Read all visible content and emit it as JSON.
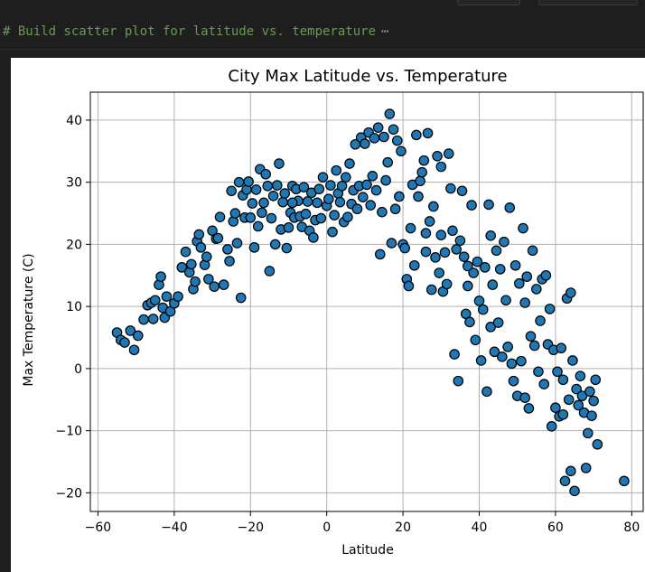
{
  "code": {
    "comment": "# Build scatter plot for latitude vs. temperature",
    "more_glyph": "⋯"
  },
  "colors": {
    "point_fill": "#1f77b4",
    "point_edge": "#000000",
    "grid": "#b0b0b0",
    "comment": "#6a9955"
  },
  "chart_data": {
    "type": "scatter",
    "title": "City Max Latitude vs. Temperature",
    "xlabel": "Latitude",
    "ylabel": "Max Temperature (C)",
    "xlim": [
      -62,
      83
    ],
    "ylim": [
      -23,
      44.5
    ],
    "xticks": [
      -60,
      -40,
      -20,
      0,
      20,
      40,
      60,
      80
    ],
    "yticks": [
      -20,
      -10,
      0,
      10,
      20,
      30,
      40
    ],
    "xtick_labels": [
      "−60",
      "−40",
      "−20",
      "0",
      "20",
      "40",
      "60",
      "80"
    ],
    "ytick_labels": [
      "−20",
      "−10",
      "0",
      "10",
      "20",
      "30",
      "40"
    ],
    "grid": true,
    "points": [
      [
        -55,
        5.8
      ],
      [
        -54,
        4.6
      ],
      [
        -53,
        4.2
      ],
      [
        -51.5,
        6.1
      ],
      [
        -50.5,
        3
      ],
      [
        -49.5,
        5.3
      ],
      [
        -48,
        7.9
      ],
      [
        -47,
        10.2
      ],
      [
        -46,
        10.6
      ],
      [
        -45.5,
        8
      ],
      [
        -45,
        11
      ],
      [
        -44,
        13.5
      ],
      [
        -43.5,
        14.8
      ],
      [
        -43,
        9.8
      ],
      [
        -42.5,
        8.2
      ],
      [
        -42,
        11.6
      ],
      [
        -41,
        9.2
      ],
      [
        -40,
        10.5
      ],
      [
        -39,
        11.6
      ],
      [
        -38,
        16.3
      ],
      [
        -37,
        18.8
      ],
      [
        -36,
        15.5
      ],
      [
        -35.5,
        16.8
      ],
      [
        -35,
        12.8
      ],
      [
        -34.5,
        14
      ],
      [
        -34,
        20.5
      ],
      [
        -33.5,
        21.6
      ],
      [
        -33,
        19.5
      ],
      [
        -32,
        16.7
      ],
      [
        -31.5,
        18
      ],
      [
        -31,
        14.4
      ],
      [
        -30,
        22.2
      ],
      [
        -29.5,
        13.2
      ],
      [
        -29,
        20.9
      ],
      [
        -28.5,
        21
      ],
      [
        -28,
        24.4
      ],
      [
        -27,
        13.5
      ],
      [
        -26,
        19.2
      ],
      [
        -25.5,
        17.3
      ],
      [
        -25,
        28.6
      ],
      [
        -24.5,
        23.7
      ],
      [
        -24,
        25
      ],
      [
        -23.5,
        20.2
      ],
      [
        -23,
        30
      ],
      [
        -22.5,
        11.4
      ],
      [
        -22,
        27.9
      ],
      [
        -21.5,
        24.3
      ],
      [
        -21,
        28.8
      ],
      [
        -20.5,
        30.1
      ],
      [
        -20,
        24.3
      ],
      [
        -19.5,
        26.6
      ],
      [
        -19,
        19.5
      ],
      [
        -18.5,
        28.8
      ],
      [
        -18,
        22.9
      ],
      [
        -17.5,
        32.1
      ],
      [
        -17,
        25.1
      ],
      [
        -16.5,
        26.7
      ],
      [
        -16,
        31.3
      ],
      [
        -15.5,
        29.4
      ],
      [
        -15,
        15.7
      ],
      [
        -14.5,
        24.2
      ],
      [
        -14,
        27.8
      ],
      [
        -13.5,
        20
      ],
      [
        -13,
        29.5
      ],
      [
        -12.5,
        33
      ],
      [
        -12,
        22.4
      ],
      [
        -11.5,
        26.8
      ],
      [
        -11,
        28.2
      ],
      [
        -10.5,
        19.4
      ],
      [
        -10,
        22.7
      ],
      [
        -9.5,
        25.1
      ],
      [
        -9,
        29.4
      ],
      [
        -8.5,
        24.3
      ],
      [
        -8,
        28.9
      ],
      [
        -7.5,
        27
      ],
      [
        -7,
        24.5
      ],
      [
        -6.5,
        22.8
      ],
      [
        -6,
        29.2
      ],
      [
        -5.5,
        24.9
      ],
      [
        -5,
        26.9
      ],
      [
        -4.5,
        22.2
      ],
      [
        -4,
        28.3
      ],
      [
        -3.5,
        21.1
      ],
      [
        -3,
        23.9
      ],
      [
        -2.5,
        26.7
      ],
      [
        -2,
        28.9
      ],
      [
        -1.5,
        24.2
      ],
      [
        -1,
        30.8
      ],
      [
        0,
        26.2
      ],
      [
        0.5,
        27.3
      ],
      [
        1,
        29.5
      ],
      [
        1.5,
        22
      ],
      [
        2,
        24.7
      ],
      [
        2.5,
        31.9
      ],
      [
        3,
        28.2
      ],
      [
        3.5,
        26.8
      ],
      [
        4,
        29.4
      ],
      [
        4.5,
        23.6
      ],
      [
        5,
        30.8
      ],
      [
        5.5,
        24.4
      ],
      [
        6,
        33
      ],
      [
        6.5,
        26.5
      ],
      [
        7,
        28.7
      ],
      [
        7.5,
        36.1
      ],
      [
        8,
        25.7
      ],
      [
        8.5,
        29.4
      ],
      [
        9,
        37.2
      ],
      [
        9.5,
        27.6
      ],
      [
        10,
        36.2
      ],
      [
        10.5,
        29.6
      ],
      [
        11,
        38
      ],
      [
        11.5,
        26.3
      ],
      [
        12,
        31
      ],
      [
        12.5,
        37.1
      ],
      [
        13,
        28.7
      ],
      [
        13.5,
        38.8
      ],
      [
        14,
        18.4
      ],
      [
        14.5,
        25.2
      ],
      [
        15,
        37.3
      ],
      [
        15.5,
        30.3
      ],
      [
        16,
        33.2
      ],
      [
        16.5,
        41
      ],
      [
        17,
        20.2
      ],
      [
        17.5,
        38.5
      ],
      [
        18,
        25.7
      ],
      [
        18.5,
        36.7
      ],
      [
        19,
        27.7
      ],
      [
        19.5,
        35
      ],
      [
        20,
        20
      ],
      [
        20.5,
        19.4
      ],
      [
        21,
        14.4
      ],
      [
        21.5,
        13.3
      ],
      [
        22,
        22.6
      ],
      [
        22.5,
        29.6
      ],
      [
        23,
        16.6
      ],
      [
        23.5,
        37.6
      ],
      [
        24,
        27.7
      ],
      [
        24.5,
        30.2
      ],
      [
        25,
        31.6
      ],
      [
        25.5,
        33.5
      ],
      [
        26,
        21.8
      ],
      [
        26.5,
        37.9
      ],
      [
        27,
        23.7
      ],
      [
        27.5,
        12.7
      ],
      [
        28,
        26.1
      ],
      [
        28.5,
        17.9
      ],
      [
        29,
        34.2
      ],
      [
        29.5,
        15.4
      ],
      [
        30,
        21.5
      ],
      [
        30.5,
        12.4
      ],
      [
        31,
        18.7
      ],
      [
        31.5,
        13.6
      ],
      [
        32,
        34.6
      ],
      [
        32.5,
        29
      ],
      [
        33,
        22.2
      ],
      [
        33.5,
        2.3
      ],
      [
        34,
        19.2
      ],
      [
        34.5,
        -2
      ],
      [
        35,
        20.6
      ],
      [
        35.5,
        28.6
      ],
      [
        36,
        18
      ],
      [
        36.5,
        8.8
      ],
      [
        37,
        16.5
      ],
      [
        37.5,
        7.5
      ],
      [
        38,
        26.3
      ],
      [
        38.5,
        15.4
      ],
      [
        39,
        4.6
      ],
      [
        39.5,
        17.2
      ],
      [
        40,
        10.9
      ],
      [
        40.5,
        1.3
      ],
      [
        41,
        9.5
      ],
      [
        41.5,
        16.3
      ],
      [
        42,
        -3.7
      ],
      [
        42.5,
        26.4
      ],
      [
        43,
        6.7
      ],
      [
        43.5,
        13.5
      ],
      [
        44,
        2.7
      ],
      [
        44.5,
        19
      ],
      [
        45,
        7.4
      ],
      [
        45.5,
        16
      ],
      [
        46,
        1.9
      ],
      [
        46.5,
        20.4
      ],
      [
        47,
        11
      ],
      [
        47.5,
        3.5
      ],
      [
        48,
        25.9
      ],
      [
        48.5,
        0.8
      ],
      [
        49,
        -2
      ],
      [
        49.5,
        16.6
      ],
      [
        50,
        -4.4
      ],
      [
        50.5,
        13.7
      ],
      [
        51,
        1.2
      ],
      [
        51.5,
        22.6
      ],
      [
        52,
        -4.7
      ],
      [
        52.5,
        14.8
      ],
      [
        53,
        -6.4
      ],
      [
        53.5,
        5.2
      ],
      [
        54,
        19
      ],
      [
        54.5,
        3.7
      ],
      [
        55,
        12.8
      ],
      [
        55.5,
        -0.5
      ],
      [
        56,
        7.7
      ],
      [
        56.5,
        14.4
      ],
      [
        57,
        -2.5
      ],
      [
        57.5,
        15
      ],
      [
        58,
        3.9
      ],
      [
        58.5,
        9.6
      ],
      [
        59,
        -9.3
      ],
      [
        59.5,
        3
      ],
      [
        60,
        -6.3
      ],
      [
        60.5,
        -0.5
      ],
      [
        61,
        -7.7
      ],
      [
        61.5,
        3.3
      ],
      [
        62,
        -1.8
      ],
      [
        62.5,
        -18.1
      ],
      [
        63,
        11.3
      ],
      [
        63.5,
        -5
      ],
      [
        64,
        -16.5
      ],
      [
        64.5,
        1.3
      ],
      [
        65,
        -19.7
      ],
      [
        65.5,
        -3.3
      ],
      [
        66,
        -5.9
      ],
      [
        66.5,
        -1.2
      ],
      [
        67,
        -4.4
      ],
      [
        67.5,
        -7.1
      ],
      [
        68,
        -16
      ],
      [
        68.5,
        -10.4
      ],
      [
        69,
        -3.7
      ],
      [
        69.5,
        -7.6
      ],
      [
        70,
        -5.2
      ],
      [
        70.5,
        -1.8
      ],
      [
        71,
        -12.2
      ],
      [
        78,
        -18.1
      ],
      [
        64,
        12.2
      ],
      [
        37,
        13.3
      ],
      [
        43,
        21.4
      ],
      [
        30,
        32.5
      ],
      [
        52,
        10.6
      ],
      [
        26,
        18.8
      ],
      [
        62,
        -7.4
      ],
      [
        -9,
        26.7
      ]
    ]
  }
}
